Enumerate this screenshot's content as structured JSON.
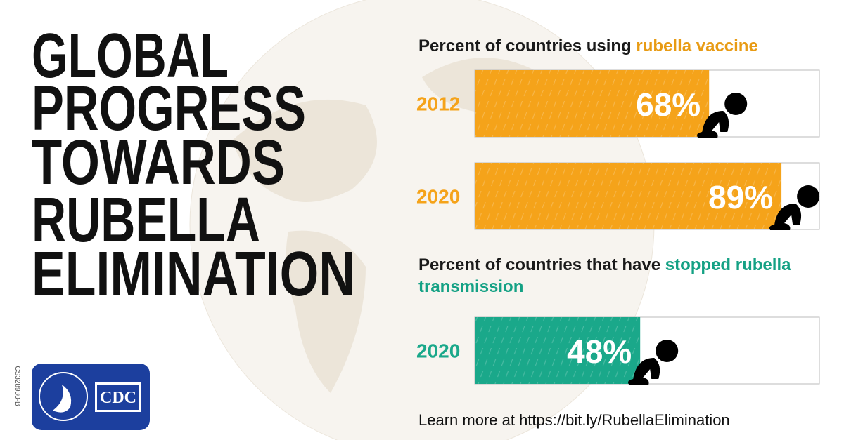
{
  "headline": [
    "GLOBAL",
    "PROGRESS",
    "TOWARDS",
    "RUBELLA",
    "ELIMINATION"
  ],
  "chart_data": [
    {
      "type": "bar",
      "title": "Percent of countries using",
      "title_highlight": "rubella vaccine",
      "categories": [
        "2012",
        "2020"
      ],
      "values": [
        68,
        89
      ],
      "value_labels": [
        "68%",
        "89%"
      ],
      "color": "#f5a31a",
      "xlim": [
        0,
        100
      ]
    },
    {
      "type": "bar",
      "title": "Percent of countries that have",
      "title_highlight": "stopped rubella transmission",
      "categories": [
        "2020"
      ],
      "values": [
        48
      ],
      "value_labels": [
        "48%"
      ],
      "color": "#1aa88a",
      "xlim": [
        0,
        100
      ]
    }
  ],
  "footer": "Learn more at https://bit.ly/RubellaElimination",
  "code": "CS328930-B",
  "logo": "CDC"
}
